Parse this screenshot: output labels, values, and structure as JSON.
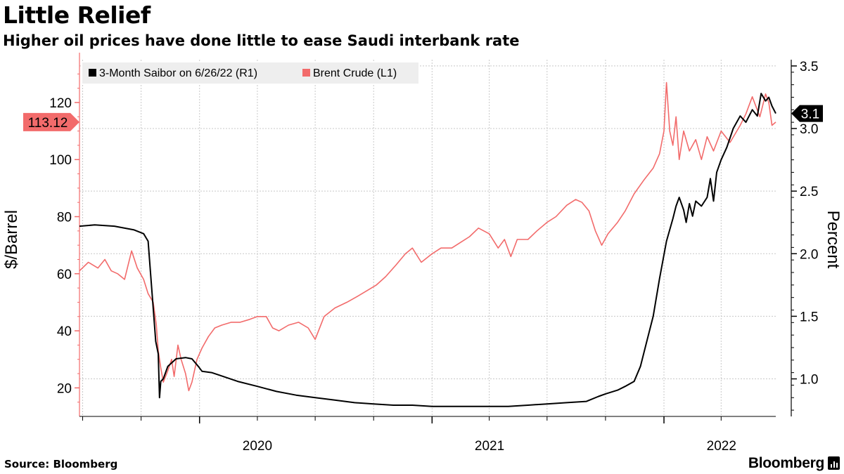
{
  "header": {
    "title": "Little Relief",
    "subtitle": "Higher oil prices have done little to ease Saudi interbank rate"
  },
  "footer": {
    "source": "Source: Bloomberg",
    "brand": "Bloomberg"
  },
  "colors": {
    "saibor": "#000000",
    "brent": "#f26b6b",
    "grid": "#c8c8c8"
  },
  "chart_data": {
    "type": "line",
    "x_range": [
      "2019-06-26",
      "2022-06-26"
    ],
    "x_ticks": [
      {
        "date": "2020-01-01",
        "label": "2020"
      },
      {
        "date": "2021-01-01",
        "label": "2021"
      },
      {
        "date": "2022-01-01",
        "label": "2022"
      }
    ],
    "y_left": {
      "label": "$/Barrel",
      "range": [
        10,
        135
      ],
      "ticks": [
        20,
        40,
        60,
        80,
        100,
        120
      ]
    },
    "y_right": {
      "label": "Percent",
      "range": [
        0.7,
        3.55
      ],
      "ticks": [
        "1.0",
        "1.5",
        "2.0",
        "2.5",
        "3.0",
        "3.5"
      ]
    },
    "legend": {
      "position": "top-left"
    },
    "series": [
      {
        "name": "3-Month Saibor on 6/26/22 (R1)",
        "axis": "right",
        "last_label": "3.1",
        "points": [
          [
            "2019-06-26",
            2.22
          ],
          [
            "2019-07-20",
            2.23
          ],
          [
            "2019-08-20",
            2.22
          ],
          [
            "2019-09-20",
            2.19
          ],
          [
            "2019-10-05",
            2.16
          ],
          [
            "2019-10-12",
            2.1
          ],
          [
            "2019-10-18",
            1.7
          ],
          [
            "2019-10-24",
            1.3
          ],
          [
            "2019-10-28",
            1.2
          ],
          [
            "2019-10-30",
            0.85
          ],
          [
            "2019-11-01",
            0.98
          ],
          [
            "2019-11-05",
            1.0
          ],
          [
            "2019-11-12",
            1.1
          ],
          [
            "2019-11-25",
            1.16
          ],
          [
            "2019-12-10",
            1.17
          ],
          [
            "2019-12-20",
            1.16
          ],
          [
            "2019-12-30",
            1.1
          ],
          [
            "2020-01-05",
            1.06
          ],
          [
            "2020-01-20",
            1.05
          ],
          [
            "2020-02-01",
            1.03
          ],
          [
            "2020-03-01",
            0.98
          ],
          [
            "2020-04-01",
            0.94
          ],
          [
            "2020-05-01",
            0.9
          ],
          [
            "2020-06-01",
            0.87
          ],
          [
            "2020-07-01",
            0.85
          ],
          [
            "2020-08-01",
            0.83
          ],
          [
            "2020-09-01",
            0.81
          ],
          [
            "2020-10-01",
            0.8
          ],
          [
            "2020-11-01",
            0.79
          ],
          [
            "2020-12-01",
            0.79
          ],
          [
            "2021-01-01",
            0.78
          ],
          [
            "2021-03-01",
            0.78
          ],
          [
            "2021-05-01",
            0.78
          ],
          [
            "2021-06-01",
            0.79
          ],
          [
            "2021-07-01",
            0.8
          ],
          [
            "2021-08-01",
            0.81
          ],
          [
            "2021-09-01",
            0.82
          ],
          [
            "2021-09-20",
            0.86
          ],
          [
            "2021-10-01",
            0.88
          ],
          [
            "2021-10-20",
            0.91
          ],
          [
            "2021-11-01",
            0.94
          ],
          [
            "2021-11-15",
            0.98
          ],
          [
            "2021-11-25",
            1.1
          ],
          [
            "2021-12-05",
            1.3
          ],
          [
            "2021-12-15",
            1.5
          ],
          [
            "2021-12-25",
            1.8
          ],
          [
            "2022-01-05",
            2.1
          ],
          [
            "2022-01-15",
            2.28
          ],
          [
            "2022-01-20",
            2.38
          ],
          [
            "2022-01-25",
            2.45
          ],
          [
            "2022-02-01",
            2.35
          ],
          [
            "2022-02-05",
            2.25
          ],
          [
            "2022-02-10",
            2.4
          ],
          [
            "2022-02-15",
            2.3
          ],
          [
            "2022-02-20",
            2.42
          ],
          [
            "2022-03-01",
            2.38
          ],
          [
            "2022-03-10",
            2.45
          ],
          [
            "2022-03-15",
            2.6
          ],
          [
            "2022-03-20",
            2.42
          ],
          [
            "2022-03-25",
            2.65
          ],
          [
            "2022-04-01",
            2.75
          ],
          [
            "2022-04-10",
            2.85
          ],
          [
            "2022-04-20",
            3.0
          ],
          [
            "2022-05-01",
            3.1
          ],
          [
            "2022-05-10",
            3.05
          ],
          [
            "2022-05-20",
            3.15
          ],
          [
            "2022-05-28",
            3.1
          ],
          [
            "2022-06-03",
            3.28
          ],
          [
            "2022-06-10",
            3.22
          ],
          [
            "2022-06-15",
            3.25
          ],
          [
            "2022-06-20",
            3.18
          ],
          [
            "2022-06-26",
            3.12
          ]
        ]
      },
      {
        "name": "Brent Crude (L1)",
        "axis": "left",
        "last_label": "113.12",
        "points": [
          [
            "2019-06-26",
            61
          ],
          [
            "2019-07-10",
            64
          ],
          [
            "2019-07-25",
            62
          ],
          [
            "2019-08-05",
            65
          ],
          [
            "2019-08-15",
            61
          ],
          [
            "2019-08-25",
            60
          ],
          [
            "2019-09-05",
            58
          ],
          [
            "2019-09-16",
            68
          ],
          [
            "2019-09-25",
            62
          ],
          [
            "2019-10-05",
            58
          ],
          [
            "2019-10-12",
            53
          ],
          [
            "2019-10-20",
            50
          ],
          [
            "2019-10-25",
            42
          ],
          [
            "2019-10-28",
            33
          ],
          [
            "2019-11-01",
            27
          ],
          [
            "2019-11-05",
            22
          ],
          [
            "2019-11-12",
            26
          ],
          [
            "2019-11-18",
            30
          ],
          [
            "2019-11-22",
            24
          ],
          [
            "2019-11-28",
            35
          ],
          [
            "2019-12-03",
            30
          ],
          [
            "2019-12-10",
            25
          ],
          [
            "2019-12-15",
            19
          ],
          [
            "2019-12-20",
            22
          ],
          [
            "2019-12-28",
            30
          ],
          [
            "2020-01-05",
            34
          ],
          [
            "2020-01-15",
            38
          ],
          [
            "2020-01-25",
            41
          ],
          [
            "2020-02-05",
            42
          ],
          [
            "2020-02-20",
            43
          ],
          [
            "2020-03-05",
            43
          ],
          [
            "2020-03-20",
            44
          ],
          [
            "2020-04-01",
            45
          ],
          [
            "2020-04-15",
            45
          ],
          [
            "2020-04-25",
            41
          ],
          [
            "2020-05-05",
            40
          ],
          [
            "2020-05-20",
            42
          ],
          [
            "2020-06-05",
            43
          ],
          [
            "2020-06-20",
            41
          ],
          [
            "2020-07-01",
            37
          ],
          [
            "2020-07-15",
            45
          ],
          [
            "2020-08-01",
            48
          ],
          [
            "2020-08-20",
            50
          ],
          [
            "2020-09-05",
            52
          ],
          [
            "2020-09-20",
            54
          ],
          [
            "2020-10-05",
            56
          ],
          [
            "2020-10-20",
            59
          ],
          [
            "2020-11-05",
            63
          ],
          [
            "2020-11-20",
            67
          ],
          [
            "2020-12-01",
            69
          ],
          [
            "2020-12-15",
            64
          ],
          [
            "2021-01-01",
            67
          ],
          [
            "2021-01-15",
            69
          ],
          [
            "2021-02-01",
            69
          ],
          [
            "2021-02-15",
            71
          ],
          [
            "2021-03-01",
            73
          ],
          [
            "2021-03-15",
            76
          ],
          [
            "2021-04-01",
            74
          ],
          [
            "2021-04-15",
            69
          ],
          [
            "2021-04-25",
            72
          ],
          [
            "2021-05-05",
            66
          ],
          [
            "2021-05-15",
            72
          ],
          [
            "2021-06-01",
            72
          ],
          [
            "2021-06-15",
            75
          ],
          [
            "2021-07-01",
            78
          ],
          [
            "2021-07-15",
            80
          ],
          [
            "2021-08-01",
            84
          ],
          [
            "2021-08-15",
            86
          ],
          [
            "2021-08-25",
            85
          ],
          [
            "2021-09-05",
            82
          ],
          [
            "2021-09-15",
            75
          ],
          [
            "2021-09-25",
            70
          ],
          [
            "2021-10-05",
            74
          ],
          [
            "2021-10-20",
            78
          ],
          [
            "2021-11-01",
            82
          ],
          [
            "2021-11-15",
            88
          ],
          [
            "2021-12-01",
            93
          ],
          [
            "2021-12-15",
            97
          ],
          [
            "2021-12-25",
            102
          ],
          [
            "2022-01-01",
            110
          ],
          [
            "2022-01-05",
            127
          ],
          [
            "2022-01-10",
            110
          ],
          [
            "2022-01-15",
            105
          ],
          [
            "2022-01-20",
            115
          ],
          [
            "2022-01-25",
            100
          ],
          [
            "2022-02-01",
            110
          ],
          [
            "2022-02-10",
            103
          ],
          [
            "2022-02-20",
            107
          ],
          [
            "2022-03-01",
            100
          ],
          [
            "2022-03-10",
            108
          ],
          [
            "2022-03-20",
            103
          ],
          [
            "2022-04-01",
            110
          ],
          [
            "2022-04-15",
            106
          ],
          [
            "2022-05-01",
            112
          ],
          [
            "2022-05-10",
            116
          ],
          [
            "2022-05-20",
            122
          ],
          [
            "2022-06-01",
            115
          ],
          [
            "2022-06-10",
            123
          ],
          [
            "2022-06-15",
            120
          ],
          [
            "2022-06-20",
            112
          ],
          [
            "2022-06-26",
            113.12
          ]
        ]
      }
    ]
  }
}
